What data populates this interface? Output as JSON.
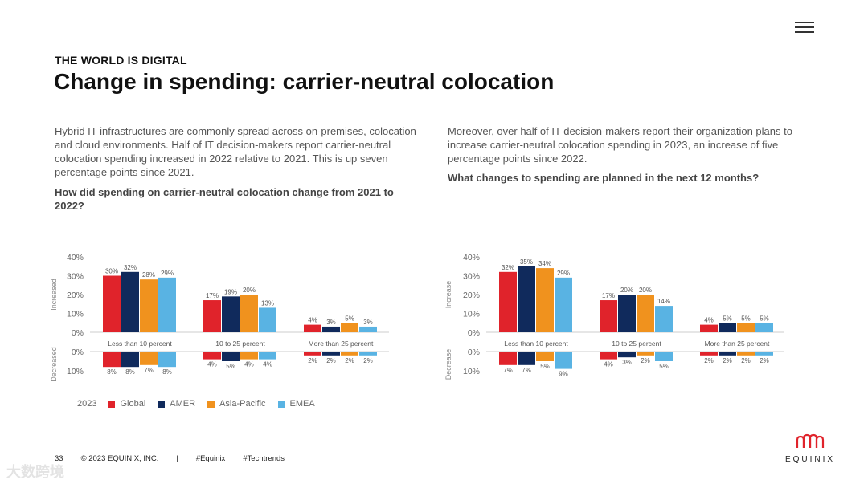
{
  "header": {
    "eyebrow": "THE WORLD IS DIGITAL",
    "title": "Change in spending: carrier-neutral colocation"
  },
  "left_text": {
    "paragraph": "Hybrid IT infrastructures are commonly spread across on-premises, colocation and cloud environments. Half of IT decision-makers report carrier-neutral colocation spending increased in 2022 relative to 2021. This is up seven percentage points since 2021.",
    "question": "How did spending on carrier-neutral colocation change from 2021 to 2022?"
  },
  "right_text": {
    "paragraph": "Moreover, over half of IT decision-makers report their organization plans to increase carrier-neutral colocation spending in 2023, an increase of five percentage points since 2022.",
    "question": "What changes to spending are planned in the next 12 months?"
  },
  "legend": {
    "year": "2023",
    "items": [
      {
        "label": "Global",
        "color": "#e0232b"
      },
      {
        "label": "AMER",
        "color": "#102a5c"
      },
      {
        "label": "Asia-Pacific",
        "color": "#f0921e"
      },
      {
        "label": "EMEA",
        "color": "#59b3e3"
      }
    ]
  },
  "chart_data": [
    {
      "type": "bar",
      "title": "",
      "categories": [
        "Less than 10 percent",
        "10 to 25 percent",
        "More than 25 percent"
      ],
      "series_names": [
        "Global",
        "AMER",
        "Asia-Pacific",
        "EMEA"
      ],
      "colors": [
        "#e0232b",
        "#102a5c",
        "#f0921e",
        "#59b3e3"
      ],
      "increased": {
        "axis_label": "Increased",
        "ticks": [
          "40%",
          "30%",
          "20%",
          "10%",
          "0%"
        ],
        "ylim": [
          0,
          40
        ],
        "values": [
          [
            30,
            32,
            28,
            29
          ],
          [
            17,
            19,
            20,
            13
          ],
          [
            4,
            3,
            5,
            3
          ]
        ],
        "labels": [
          [
            "30%",
            "32%",
            "28%",
            "29%"
          ],
          [
            "17%",
            "19%",
            "20%",
            "13%"
          ],
          [
            "4%",
            "3%",
            "5%",
            "3%"
          ]
        ]
      },
      "decreased": {
        "axis_label": "Decreased",
        "ticks": [
          "0%",
          "10%"
        ],
        "ylim": [
          0,
          10
        ],
        "values": [
          [
            8,
            8,
            7,
            8
          ],
          [
            4,
            5,
            4,
            4
          ],
          [
            2,
            2,
            2,
            2
          ]
        ],
        "labels": [
          [
            "8%",
            "8%",
            "7%",
            "8%"
          ],
          [
            "4%",
            "5%",
            "4%",
            "4%"
          ],
          [
            "2%",
            "2%",
            "2%",
            "2%"
          ]
        ]
      }
    },
    {
      "type": "bar",
      "title": "",
      "categories": [
        "Less than 10 percent",
        "10 to 25 percent",
        "More than 25 percent"
      ],
      "series_names": [
        "Global",
        "AMER",
        "Asia-Pacific",
        "EMEA"
      ],
      "colors": [
        "#e0232b",
        "#102a5c",
        "#f0921e",
        "#59b3e3"
      ],
      "increased": {
        "axis_label": "Increase",
        "ticks": [
          "40%",
          "30%",
          "20%",
          "10%",
          "0%"
        ],
        "ylim": [
          0,
          40
        ],
        "values": [
          [
            32,
            35,
            34,
            29
          ],
          [
            17,
            20,
            20,
            14
          ],
          [
            4,
            5,
            5,
            5
          ]
        ],
        "labels": [
          [
            "32%",
            "35%",
            "34%",
            "29%"
          ],
          [
            "17%",
            "20%",
            "20%",
            "14%"
          ],
          [
            "4%",
            "5%",
            "5%",
            "5%"
          ]
        ]
      },
      "decreased": {
        "axis_label": "Decrease",
        "ticks": [
          "0%",
          "10%"
        ],
        "ylim": [
          0,
          10
        ],
        "values": [
          [
            7,
            7,
            5,
            9
          ],
          [
            4,
            3,
            2,
            5
          ],
          [
            2,
            2,
            2,
            2
          ]
        ],
        "labels": [
          [
            "7%",
            "7%",
            "5%",
            "9%"
          ],
          [
            "4%",
            "3%",
            "2%",
            "5%"
          ],
          [
            "2%",
            "2%",
            "2%",
            "2%"
          ]
        ]
      }
    }
  ],
  "footer": {
    "page": "33",
    "copyright": "© 2023 EQUINIX, INC.",
    "divider": "|",
    "tag1": "#Equinix",
    "tag2": "#Techtrends"
  },
  "logo": {
    "wordmark": "EQUINIX"
  },
  "watermark": "大数跨境"
}
